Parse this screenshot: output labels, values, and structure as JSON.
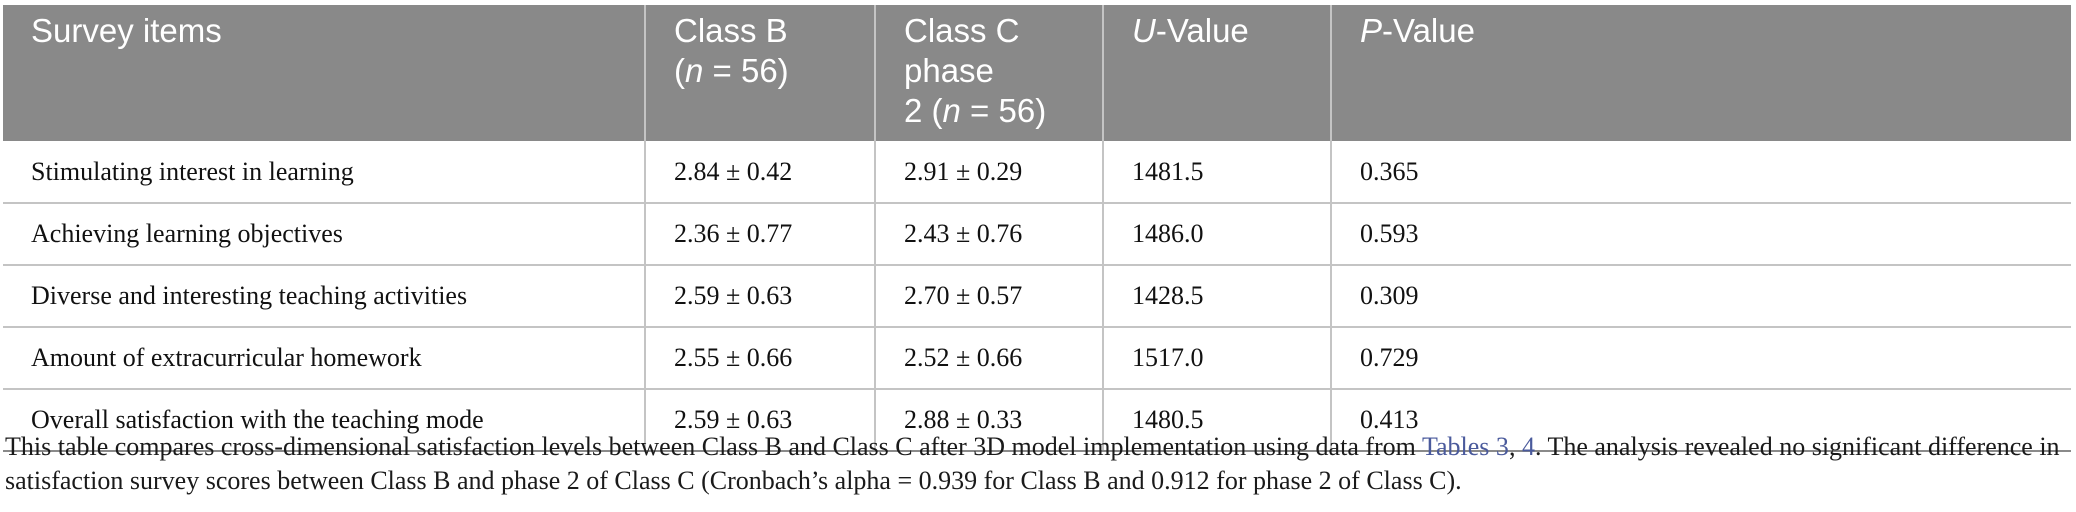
{
  "table": {
    "headers": {
      "col1": "Survey items",
      "col2_line1": "Class B",
      "col2_n_var": "n",
      "col2_n_rest": " = 56)",
      "col3_line1": "Class C phase",
      "col3_line2_pre": "2 (",
      "col3_n_var": "n",
      "col3_n_rest": " = 56)",
      "col4_var": "U",
      "col4_rest": "-Value",
      "col5_var": "P",
      "col5_rest": "-Value"
    },
    "rows": [
      {
        "item": "Stimulating interest in learning",
        "class_b": "2.84 ± 0.42",
        "class_c": "2.91 ± 0.29",
        "u": "1481.5",
        "p": "0.365"
      },
      {
        "item": "Achieving learning objectives",
        "class_b": "2.36 ± 0.77",
        "class_c": "2.43 ± 0.76",
        "u": "1486.0",
        "p": "0.593"
      },
      {
        "item": "Diverse and interesting teaching activities",
        "class_b": "2.59 ± 0.63",
        "class_c": "2.70 ± 0.57",
        "u": "1428.5",
        "p": "0.309"
      },
      {
        "item": "Amount of extracurricular homework",
        "class_b": "2.55 ± 0.66",
        "class_c": "2.52 ± 0.66",
        "u": "1517.0",
        "p": "0.729"
      },
      {
        "item": "Overall satisfaction with the teaching mode",
        "class_b": "2.59 ± 0.63",
        "class_c": "2.88 ± 0.33",
        "u": "1480.5",
        "p": "0.413"
      }
    ]
  },
  "caption": {
    "text_before": "This table compares cross-dimensional satisfaction levels between Class B and Class C after 3D model implementation using data from ",
    "link1": "Tables 3",
    "sep": ", ",
    "link2": "4",
    "text_after": ". The analysis revealed no significant difference in satisfaction survey scores between Class B and phase 2 of Class C (Cronbach’s alpha = 0.939 for Class B and 0.912 for phase 2 of Class C)."
  }
}
